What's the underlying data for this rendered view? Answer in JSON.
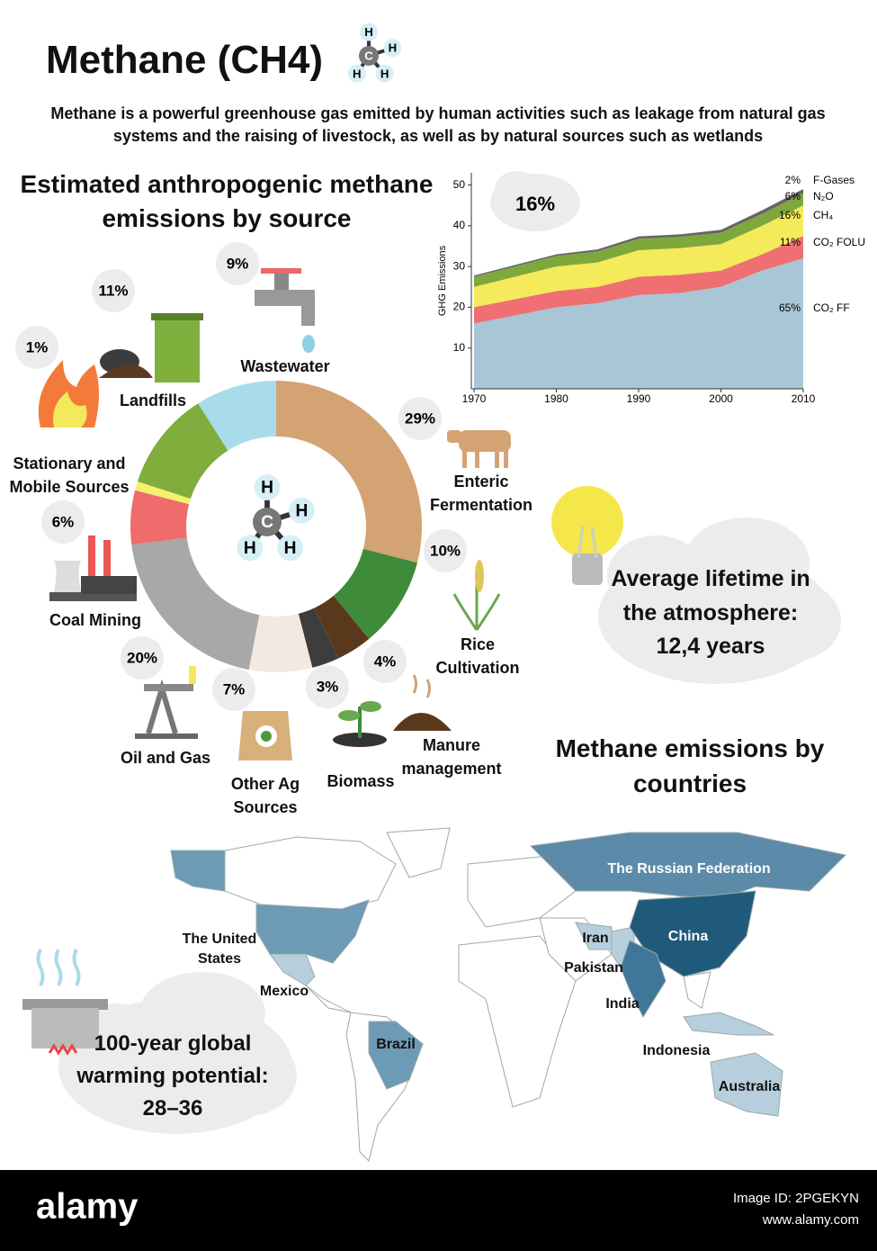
{
  "header": {
    "title": "Methane (CH4)",
    "description": "Methane is a powerful greenhouse gas emitted by human activities such as leakage from natural gas systems and the raising of livestock, as well as by natural sources such as wetlands"
  },
  "molecule": {
    "center": "C",
    "outer": "H"
  },
  "chart_data": [
    {
      "type": "pie",
      "donut": true,
      "title": "Estimated anthropogenic methane emissions by source",
      "categories": [
        "Enteric Fermentation",
        "Rice Cultivation",
        "Manure management",
        "Biomass",
        "Other Ag Sources",
        "Oil and Gas",
        "Coal Mining",
        "Stationary and Mobile Sources",
        "Landfills",
        "Wastewater"
      ],
      "values": [
        29,
        10,
        4,
        3,
        7,
        20,
        6,
        1,
        11,
        9
      ],
      "value_labels": [
        "29%",
        "10%",
        "4%",
        "3%",
        "7%",
        "20%",
        "6%",
        "1%",
        "11%",
        "9%"
      ],
      "colors": [
        "#d4a373",
        "#3e8b3a",
        "#5a381c",
        "#3d3d3d",
        "#f3e9e0",
        "#a8a8a8",
        "#ef6c6c",
        "#f4f16c",
        "#80ad3b",
        "#a9dcea"
      ]
    },
    {
      "type": "area",
      "stacked": true,
      "y_label": "GHG Emissions",
      "annotation": "16%",
      "x": [
        1970,
        1975,
        1980,
        1985,
        1990,
        1995,
        2000,
        2005,
        2010
      ],
      "xlim": [
        1970,
        2010
      ],
      "xticks": [
        1970,
        1980,
        1990,
        2000,
        2010
      ],
      "ylim": [
        0,
        53
      ],
      "yticks": [
        10,
        20,
        30,
        40,
        50
      ],
      "series": [
        {
          "name": "CO₂ FF",
          "share": "65%",
          "color": "#a9c6d6",
          "values": [
            16,
            18,
            20,
            21,
            23,
            23.5,
            25,
            29,
            32
          ]
        },
        {
          "name": "CO₂ FOLU",
          "share": "11%",
          "color": "#ef6f72",
          "values": [
            4,
            4,
            4,
            4,
            4.5,
            4.5,
            4,
            4,
            5.5
          ]
        },
        {
          "name": "CH₄",
          "share": "16%",
          "color": "#f4ea5a",
          "values": [
            5,
            5.5,
            6,
            6,
            6.5,
            6.5,
            6.5,
            7,
            7.5
          ]
        },
        {
          "name": "N₂O",
          "share": "6%",
          "color": "#7fa83c",
          "values": [
            2.5,
            2.5,
            2.6,
            2.7,
            2.8,
            2.8,
            2.8,
            2.9,
            3
          ]
        },
        {
          "name": "F-Gases",
          "share": "2%",
          "color": "#666666",
          "values": [
            0.3,
            0.4,
            0.4,
            0.5,
            0.6,
            0.6,
            0.7,
            0.9,
            1
          ]
        }
      ]
    }
  ],
  "lifetime": {
    "label": "Average lifetime in the atmosphere:",
    "value": "12,4 years"
  },
  "warming_potential": {
    "label": "100-year global warming potential:",
    "value": "28–36"
  },
  "map": {
    "title": "Methane emissions by countries",
    "countries": [
      "The Russian Federation",
      "China",
      "Iran",
      "Pakistan",
      "India",
      "Indonesia",
      "Australia",
      "Brazil",
      "Mexico",
      "The United States"
    ]
  },
  "footer": {
    "brand": "alamy",
    "image_id": "Image ID: 2PGEKYN",
    "url": "www.alamy.com"
  }
}
